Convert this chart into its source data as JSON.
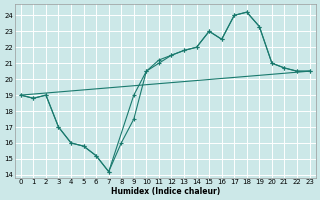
{
  "xlabel": "Humidex (Indice chaleur)",
  "bg_color": "#cce8e8",
  "grid_color": "#ffffff",
  "line_color": "#1a7a6e",
  "xlim": [
    -0.5,
    23.5
  ],
  "ylim": [
    13.8,
    24.7
  ],
  "xticks": [
    0,
    1,
    2,
    3,
    4,
    5,
    6,
    7,
    8,
    9,
    10,
    11,
    12,
    13,
    14,
    15,
    16,
    17,
    18,
    19,
    20,
    21,
    22,
    23
  ],
  "yticks": [
    14,
    15,
    16,
    17,
    18,
    19,
    20,
    21,
    22,
    23,
    24
  ],
  "line1_x": [
    0,
    1,
    2,
    3,
    4,
    5,
    6,
    7,
    9,
    10,
    11,
    12,
    13,
    14,
    15,
    16,
    17,
    18,
    19,
    20,
    21,
    22,
    23
  ],
  "line1_y": [
    19.0,
    18.8,
    19.0,
    17.0,
    16.0,
    15.8,
    15.2,
    14.2,
    19.0,
    20.5,
    21.2,
    21.5,
    21.8,
    22.0,
    23.0,
    22.5,
    24.0,
    24.2,
    23.3,
    21.0,
    20.7,
    20.5,
    20.5
  ],
  "line2_x": [
    0,
    1,
    2,
    3,
    4,
    5,
    6,
    7,
    8,
    9,
    10,
    11,
    12,
    13,
    14,
    15,
    16,
    17,
    18,
    19,
    20,
    21,
    22,
    23
  ],
  "line2_y": [
    19.0,
    18.8,
    19.0,
    17.0,
    16.0,
    15.8,
    15.2,
    14.2,
    16.0,
    17.5,
    20.5,
    21.0,
    21.5,
    21.8,
    22.0,
    23.0,
    22.5,
    24.0,
    24.2,
    23.3,
    21.0,
    20.7,
    20.5,
    20.5
  ],
  "line3_x": [
    0,
    23
  ],
  "line3_y": [
    19.0,
    20.5
  ]
}
